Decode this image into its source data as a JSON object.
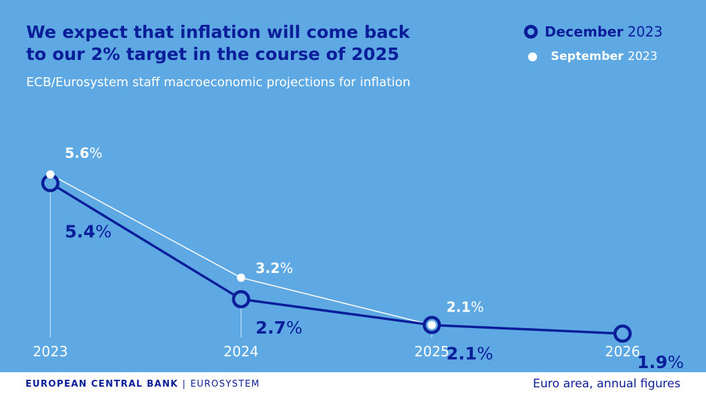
{
  "colors": {
    "background": "#5ea9e4",
    "december": "#0b1e9a",
    "september": "#ffffff",
    "tick_text": "#ffffff"
  },
  "title_lines": [
    "We expect that inflation will come back",
    "to our 2% target in the course of 2025"
  ],
  "subtitle": "ECB/Eurosystem staff macroeconomic projections for inflation",
  "legend": [
    {
      "name": "December",
      "year": "2023",
      "marker": "ring"
    },
    {
      "name": "September",
      "year": "2023",
      "marker": "dot"
    }
  ],
  "footer": {
    "brand_bold": "EUROPEAN CENTRAL BANK",
    "separator": "|",
    "brand_light": "EUROSYSTEM",
    "note": "Euro area, annual figures"
  },
  "chart_data": {
    "type": "line",
    "categories": [
      "2023",
      "2024",
      "2025",
      "2026"
    ],
    "series": [
      {
        "name": "December 2023",
        "values": [
          5.4,
          2.7,
          2.1,
          1.9
        ],
        "labels": [
          "5.4",
          "2.7",
          "2.1",
          "1.9"
        ],
        "unit": "%"
      },
      {
        "name": "September 2023",
        "values": [
          5.6,
          3.2,
          2.1,
          null
        ],
        "labels": [
          "5.6",
          "3.2",
          "2.1",
          null
        ],
        "unit": "%"
      }
    ],
    "ylim": [
      1.5,
      6.5
    ],
    "grid": false
  }
}
